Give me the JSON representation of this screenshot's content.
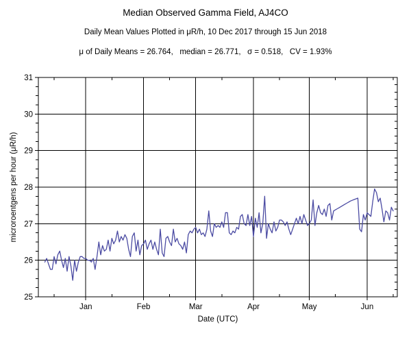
{
  "header": {
    "title": "Median Observed Gamma Field, AJ4CO",
    "subtitle": "Daily Mean Values Plotted in μR/h, 10 Dec 2017 through 15 Jun 2018",
    "stats_line": "μ of Daily Means = 26.764,   median = 26.771,   σ = 0.518,   CV = 1.93%"
  },
  "chart_data": {
    "type": "line",
    "title": "Median Observed Gamma Field, AJ4CO",
    "xlabel": "Date (UTC)",
    "ylabel": "microroentgens per hour (μR/h)",
    "start_date": "10 Dec 2017",
    "end_date": "15 Jun 2018",
    "ylim": [
      25,
      31
    ],
    "y_major_ticks": [
      25,
      26,
      27,
      28,
      29,
      30,
      31
    ],
    "y_minor_left_step": 0.25,
    "y_minor_right_step": 0.2,
    "grid": true,
    "grid_color": "#000000",
    "line_color": "#4a4aa2",
    "x_ticks": [
      {
        "label": "Jan",
        "day": 22
      },
      {
        "label": "Feb",
        "day": 53
      },
      {
        "label": "Mar",
        "day": 81
      },
      {
        "label": "Apr",
        "day": 112
      },
      {
        "label": "May",
        "day": 142
      },
      {
        "label": "Jun",
        "day": 173
      }
    ],
    "x_minor_tick_days": [
      5,
      36,
      67,
      95,
      126,
      156,
      187
    ],
    "series": [
      {
        "name": "daily mean gamma field (μR/h), one point per day starting 10 Dec 2017",
        "values": [
          25.95,
          26.05,
          25.9,
          25.75,
          25.75,
          26.1,
          25.9,
          26.15,
          26.25,
          26.0,
          25.8,
          26.05,
          25.7,
          26.1,
          25.85,
          25.45,
          26.0,
          25.7,
          25.95,
          26.1,
          26.1,
          26.05,
          26.05,
          26.0,
          26.0,
          25.95,
          26.05,
          25.75,
          26.1,
          26.5,
          26.15,
          26.4,
          26.25,
          26.3,
          26.55,
          26.25,
          26.6,
          26.45,
          26.55,
          26.8,
          26.5,
          26.65,
          26.55,
          26.7,
          26.6,
          26.3,
          26.1,
          26.65,
          26.75,
          26.25,
          26.55,
          26.15,
          26.4,
          26.45,
          26.55,
          26.3,
          26.45,
          26.55,
          26.3,
          26.5,
          26.3,
          26.15,
          26.85,
          26.2,
          26.1,
          26.6,
          26.65,
          26.5,
          26.4,
          26.85,
          26.5,
          26.6,
          26.45,
          26.4,
          26.3,
          26.5,
          26.2,
          26.7,
          26.8,
          26.75,
          26.85,
          26.9,
          26.75,
          26.85,
          26.7,
          26.75,
          26.65,
          26.85,
          27.35,
          26.8,
          26.65,
          27.0,
          26.9,
          26.95,
          26.9,
          27.05,
          26.9,
          27.3,
          27.3,
          26.75,
          26.7,
          26.8,
          26.75,
          26.9,
          26.85,
          27.2,
          27.25,
          27.0,
          26.95,
          27.25,
          26.95,
          27.2,
          26.65,
          27.15,
          26.9,
          27.3,
          26.75,
          27.0,
          27.75,
          26.6,
          27.0,
          26.85,
          26.75,
          27.05,
          26.8,
          26.9,
          27.1,
          27.1,
          27.05,
          26.95,
          27.05,
          26.85,
          26.7,
          26.85,
          27.0,
          27.15,
          27.0,
          27.2,
          27.0,
          27.25,
          27.1,
          26.95,
          27.0,
          27.1,
          27.65,
          26.95,
          27.3,
          27.5,
          27.3,
          27.25,
          27.4,
          27.2,
          27.5,
          27.55,
          27.1,
          27.35,
          27.38,
          27.41,
          27.44,
          27.47,
          27.5,
          27.53,
          27.56,
          27.59,
          27.62,
          27.64,
          27.66,
          27.68,
          27.7,
          26.85,
          26.78,
          27.25,
          27.1,
          27.3,
          27.25,
          27.2,
          27.6,
          27.95,
          27.85,
          27.6,
          27.7,
          27.4,
          27.05,
          27.35,
          27.3,
          27.1,
          27.45,
          27.35
        ]
      }
    ]
  }
}
